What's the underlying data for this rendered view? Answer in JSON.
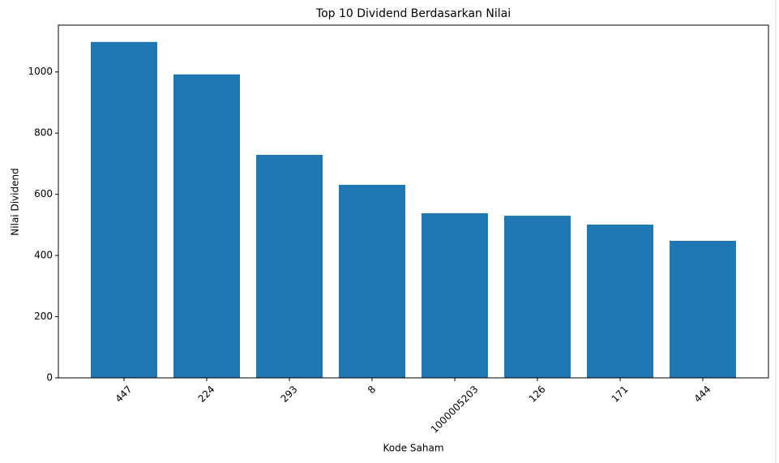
{
  "chart_data": {
    "type": "bar",
    "title": "Top 10 Dividend Berdasarkan Nilai",
    "x_label": "Kode Saham",
    "y_label": "Nilai Dividend",
    "categories": [
      "447",
      "224",
      "293",
      "8",
      "1000005203",
      "126",
      "171",
      "444"
    ],
    "values": [
      1098,
      992,
      729,
      631,
      538,
      530,
      501,
      448
    ],
    "color": "#1f77b4",
    "ylim": [
      0,
      1153
    ],
    "yticks": [
      0,
      200,
      400,
      600,
      800,
      1000
    ],
    "grid": false
  }
}
